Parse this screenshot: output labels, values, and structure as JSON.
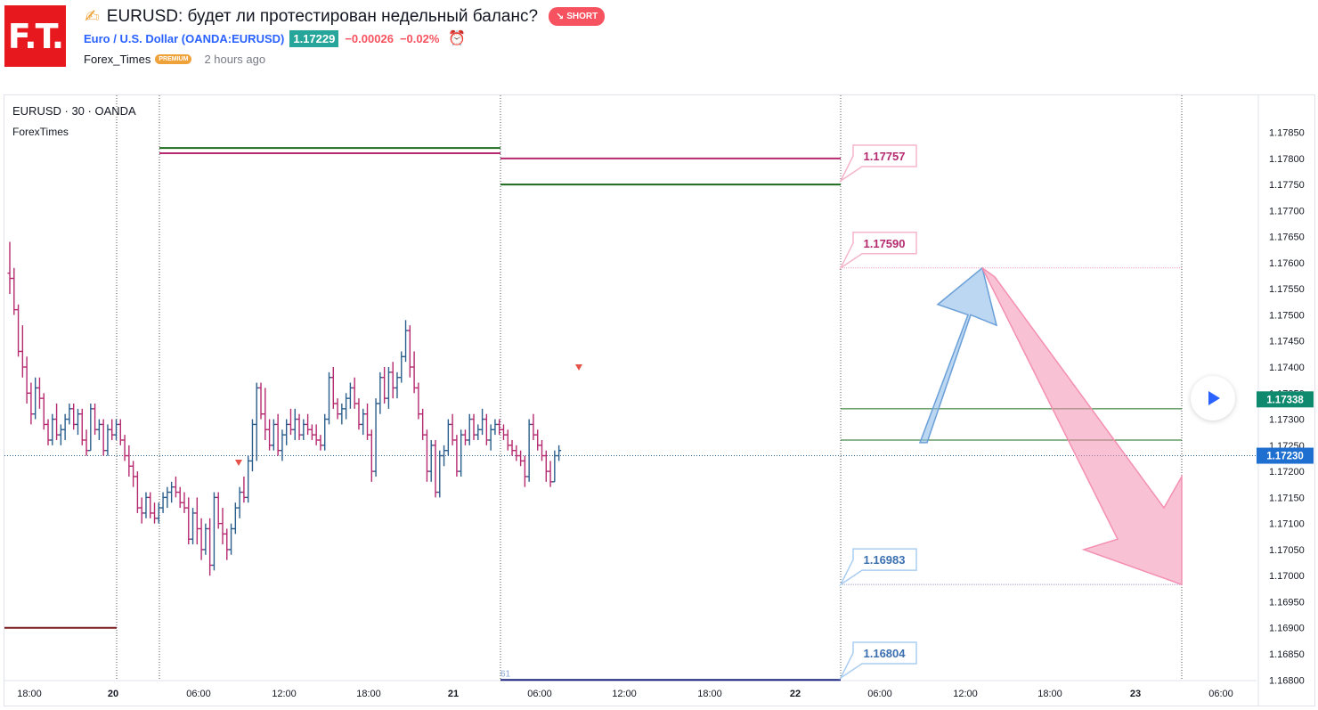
{
  "header": {
    "logo_text": "F.T.",
    "title": "EURUSD: будет ли протестирован недельный баланс?",
    "idea_badge": "SHORT",
    "symbol_name": "Euro / U.S. Dollar (OANDA:EURUSD)",
    "last_price": "1.17229",
    "change_abs": "−0.00026",
    "change_pct": "−0.02%",
    "author": "Forex_Times",
    "author_badge": "PREMIUM",
    "published": "2 hours ago"
  },
  "colors": {
    "up": "#2a5e8c",
    "down": "#b5296f",
    "short_badge": "#f7525f",
    "price_green": "#26a69a",
    "pink_arrow": "#f48fb1",
    "blue_arrow": "#90bde8"
  },
  "chart_data": {
    "type": "bar",
    "symbol_label": "EURUSD · 30 · OANDA",
    "indicator_label": "ForexTimes",
    "ylim": [
      1.1678,
      1.1788
    ],
    "y_ticks": [
      "1.17850",
      "1.17800",
      "1.17750",
      "1.17700",
      "1.17650",
      "1.17600",
      "1.17550",
      "1.17500",
      "1.17450",
      "1.17400",
      "1.17350",
      "1.17300",
      "1.17250",
      "1.17200",
      "1.17150",
      "1.17100",
      "1.17050",
      "1.17000",
      "1.16950",
      "1.16900",
      "1.16850",
      "1.16800"
    ],
    "x_ticks": [
      "18:00",
      "20",
      "06:00",
      "12:00",
      "18:00",
      "21",
      "06:00",
      "12:00",
      "18:00",
      "22",
      "06:00",
      "12:00",
      "18:00",
      "23",
      "06:00"
    ],
    "current_price": "1.17230",
    "marked_price": "1.17338",
    "levels": [
      {
        "label": "1.17757",
        "value": 1.17757,
        "tone": "pink"
      },
      {
        "label": "1.17590",
        "value": 1.1759,
        "tone": "pink"
      },
      {
        "label": "1.16983",
        "value": 1.16983,
        "tone": "blue"
      },
      {
        "label": "1.16804",
        "value": 1.16804,
        "tone": "blue"
      }
    ],
    "session_lines": [
      {
        "session": "20",
        "high": 1.1782,
        "low": 1.1781
      },
      {
        "session": "21",
        "high": 1.178,
        "low": 1.1775,
        "bottom": 1.168
      },
      {
        "session": "22",
        "high": 1.1732,
        "low": 1.1726
      },
      {
        "session": "19",
        "low": 1.169
      }
    ],
    "bottom_note": "61",
    "ohlc": [
      [
        1.1758,
        1.1764,
        1.1754,
        1.1757
      ],
      [
        1.1757,
        1.1759,
        1.175,
        1.1751
      ],
      [
        1.1751,
        1.1752,
        1.1742,
        1.1743
      ],
      [
        1.1743,
        1.1748,
        1.1738,
        1.174
      ],
      [
        1.174,
        1.1742,
        1.1733,
        1.1735
      ],
      [
        1.1735,
        1.1737,
        1.1729,
        1.1731
      ],
      [
        1.1731,
        1.1738,
        1.173,
        1.1736
      ],
      [
        1.1736,
        1.1738,
        1.1732,
        1.1734
      ],
      [
        1.1734,
        1.1735,
        1.1728,
        1.1729
      ],
      [
        1.1729,
        1.173,
        1.1725,
        1.1726
      ],
      [
        1.1726,
        1.1731,
        1.1725,
        1.173
      ],
      [
        1.173,
        1.1733,
        1.1726,
        1.1727
      ],
      [
        1.1727,
        1.1729,
        1.1725,
        1.1728
      ],
      [
        1.1728,
        1.1731,
        1.1726,
        1.173
      ],
      [
        1.173,
        1.1733,
        1.1729,
        1.1732
      ],
      [
        1.1732,
        1.1733,
        1.1728,
        1.1729
      ],
      [
        1.1729,
        1.1732,
        1.1727,
        1.1731
      ],
      [
        1.1731,
        1.1732,
        1.1725,
        1.1726
      ],
      [
        1.1726,
        1.1728,
        1.1723,
        1.1724
      ],
      [
        1.1724,
        1.1733,
        1.1724,
        1.1732
      ],
      [
        1.1732,
        1.1733,
        1.1727,
        1.1728
      ],
      [
        1.1728,
        1.173,
        1.1726,
        1.1729
      ],
      [
        1.1729,
        1.173,
        1.1723,
        1.1724
      ],
      [
        1.1724,
        1.1729,
        1.1723,
        1.1728
      ],
      [
        1.1728,
        1.173,
        1.1726,
        1.1727
      ],
      [
        1.1727,
        1.173,
        1.1726,
        1.1729
      ],
      [
        1.1729,
        1.173,
        1.1725,
        1.1726
      ],
      [
        1.1726,
        1.1727,
        1.1722,
        1.1723
      ],
      [
        1.1723,
        1.1725,
        1.1719,
        1.1721
      ],
      [
        1.1721,
        1.1722,
        1.1717,
        1.1719
      ],
      [
        1.1719,
        1.172,
        1.1712,
        1.1713
      ],
      [
        1.1713,
        1.1715,
        1.171,
        1.1712
      ],
      [
        1.1712,
        1.1716,
        1.1711,
        1.1715
      ],
      [
        1.1715,
        1.1716,
        1.1711,
        1.1712
      ],
      [
        1.1712,
        1.1714,
        1.171,
        1.1711
      ],
      [
        1.1711,
        1.1714,
        1.171,
        1.1713
      ],
      [
        1.1713,
        1.1716,
        1.1712,
        1.1715
      ],
      [
        1.1715,
        1.1717,
        1.1713,
        1.1716
      ],
      [
        1.1716,
        1.1718,
        1.1714,
        1.1717
      ],
      [
        1.1717,
        1.1719,
        1.1715,
        1.1716
      ],
      [
        1.1716,
        1.1717,
        1.1713,
        1.1714
      ],
      [
        1.1714,
        1.1716,
        1.1712,
        1.1713
      ],
      [
        1.1713,
        1.1715,
        1.1706,
        1.1707
      ],
      [
        1.1707,
        1.1713,
        1.1706,
        1.1712
      ],
      [
        1.1712,
        1.1715,
        1.1706,
        1.1709
      ],
      [
        1.1709,
        1.1711,
        1.1703,
        1.1705
      ],
      [
        1.1705,
        1.171,
        1.1704,
        1.1709
      ],
      [
        1.1709,
        1.1711,
        1.17,
        1.1702
      ],
      [
        1.1702,
        1.1716,
        1.1701,
        1.1715
      ],
      [
        1.1715,
        1.1716,
        1.1709,
        1.171
      ],
      [
        1.171,
        1.1713,
        1.1706,
        1.1708
      ],
      [
        1.1708,
        1.1709,
        1.1703,
        1.1705
      ],
      [
        1.1705,
        1.171,
        1.1704,
        1.1709
      ],
      [
        1.1709,
        1.1714,
        1.1708,
        1.1713
      ],
      [
        1.1713,
        1.1717,
        1.1711,
        1.1716
      ],
      [
        1.1716,
        1.1719,
        1.1714,
        1.1715
      ],
      [
        1.1715,
        1.1723,
        1.1714,
        1.1722
      ],
      [
        1.1722,
        1.173,
        1.172,
        1.1729
      ],
      [
        1.1729,
        1.1737,
        1.1722,
        1.1736
      ],
      [
        1.1736,
        1.1737,
        1.173,
        1.1731
      ],
      [
        1.1731,
        1.1736,
        1.1726,
        1.1728
      ],
      [
        1.1728,
        1.173,
        1.1724,
        1.1725
      ],
      [
        1.1725,
        1.173,
        1.1724,
        1.1729
      ],
      [
        1.1729,
        1.1731,
        1.1723,
        1.1724
      ],
      [
        1.1724,
        1.1728,
        1.1722,
        1.1727
      ],
      [
        1.1727,
        1.173,
        1.1725,
        1.1729
      ],
      [
        1.1729,
        1.1732,
        1.1727,
        1.1728
      ],
      [
        1.1728,
        1.1732,
        1.1726,
        1.173
      ],
      [
        1.173,
        1.1731,
        1.1726,
        1.1727
      ],
      [
        1.1727,
        1.173,
        1.1726,
        1.1729
      ],
      [
        1.1729,
        1.1731,
        1.1727,
        1.1728
      ],
      [
        1.1728,
        1.1729,
        1.1726,
        1.1727
      ],
      [
        1.1727,
        1.1729,
        1.1725,
        1.1726
      ],
      [
        1.1726,
        1.1727,
        1.1724,
        1.1725
      ],
      [
        1.1725,
        1.1731,
        1.1724,
        1.173
      ],
      [
        1.173,
        1.1739,
        1.1729,
        1.1738
      ],
      [
        1.1738,
        1.174,
        1.1732,
        1.1733
      ],
      [
        1.1733,
        1.1734,
        1.173,
        1.1731
      ],
      [
        1.1731,
        1.1733,
        1.1729,
        1.1732
      ],
      [
        1.1732,
        1.1735,
        1.173,
        1.1734
      ],
      [
        1.1734,
        1.1737,
        1.1732,
        1.1736
      ],
      [
        1.1736,
        1.1738,
        1.1732,
        1.1733
      ],
      [
        1.1733,
        1.1734,
        1.1728,
        1.1729
      ],
      [
        1.1729,
        1.1732,
        1.1727,
        1.1731
      ],
      [
        1.1731,
        1.1733,
        1.1726,
        1.1727
      ],
      [
        1.1727,
        1.1728,
        1.1718,
        1.172
      ],
      [
        1.172,
        1.1734,
        1.1719,
        1.1733
      ],
      [
        1.1733,
        1.1739,
        1.1731,
        1.1738
      ],
      [
        1.1738,
        1.174,
        1.1733,
        1.1734
      ],
      [
        1.1734,
        1.174,
        1.1732,
        1.1739
      ],
      [
        1.1739,
        1.1741,
        1.1734,
        1.1736
      ],
      [
        1.1736,
        1.1739,
        1.1734,
        1.1738
      ],
      [
        1.1738,
        1.1743,
        1.1737,
        1.1742
      ],
      [
        1.1742,
        1.1749,
        1.1741,
        1.1747
      ],
      [
        1.1747,
        1.1748,
        1.1738,
        1.174
      ],
      [
        1.174,
        1.1743,
        1.1735,
        1.1736
      ],
      [
        1.1736,
        1.1737,
        1.173,
        1.1731
      ],
      [
        1.1731,
        1.1732,
        1.1726,
        1.1727
      ],
      [
        1.1727,
        1.1728,
        1.1718,
        1.172
      ],
      [
        1.172,
        1.1726,
        1.1718,
        1.1725
      ],
      [
        1.1725,
        1.1726,
        1.1715,
        1.1716
      ],
      [
        1.1716,
        1.1724,
        1.1715,
        1.1723
      ],
      [
        1.1723,
        1.1725,
        1.1721,
        1.1724
      ],
      [
        1.1724,
        1.173,
        1.1723,
        1.1729
      ],
      [
        1.1729,
        1.1731,
        1.1725,
        1.1726
      ],
      [
        1.1726,
        1.1727,
        1.1719,
        1.172
      ],
      [
        1.172,
        1.1728,
        1.1719,
        1.1727
      ],
      [
        1.1727,
        1.1728,
        1.1725,
        1.1726
      ],
      [
        1.1726,
        1.1731,
        1.1725,
        1.173
      ],
      [
        1.173,
        1.1731,
        1.1726,
        1.1727
      ],
      [
        1.1727,
        1.1729,
        1.1726,
        1.1728
      ],
      [
        1.1728,
        1.1732,
        1.1727,
        1.173
      ],
      [
        1.173,
        1.1731,
        1.1725,
        1.1726
      ],
      [
        1.1726,
        1.1729,
        1.1724,
        1.1728
      ],
      [
        1.1728,
        1.173,
        1.1727,
        1.1729
      ],
      [
        1.1729,
        1.173,
        1.1727,
        1.1728
      ],
      [
        1.1728,
        1.1729,
        1.1726,
        1.1727
      ],
      [
        1.1727,
        1.1728,
        1.1724,
        1.1725
      ],
      [
        1.1725,
        1.1726,
        1.1723,
        1.1724
      ],
      [
        1.1724,
        1.1725,
        1.1722,
        1.1723
      ],
      [
        1.1723,
        1.1724,
        1.1721,
        1.1722
      ],
      [
        1.1722,
        1.1723,
        1.1717,
        1.1719
      ],
      [
        1.1719,
        1.173,
        1.1718,
        1.1729
      ],
      [
        1.1729,
        1.1731,
        1.1726,
        1.1727
      ],
      [
        1.1727,
        1.1728,
        1.1724,
        1.1725
      ],
      [
        1.1725,
        1.1726,
        1.1722,
        1.1723
      ],
      [
        1.1723,
        1.1724,
        1.1718,
        1.172
      ],
      [
        1.172,
        1.1722,
        1.1717,
        1.1718
      ],
      [
        1.1718,
        1.1724,
        1.1718,
        1.1723
      ],
      [
        1.1723,
        1.1725,
        1.1722,
        1.1724
      ]
    ]
  }
}
